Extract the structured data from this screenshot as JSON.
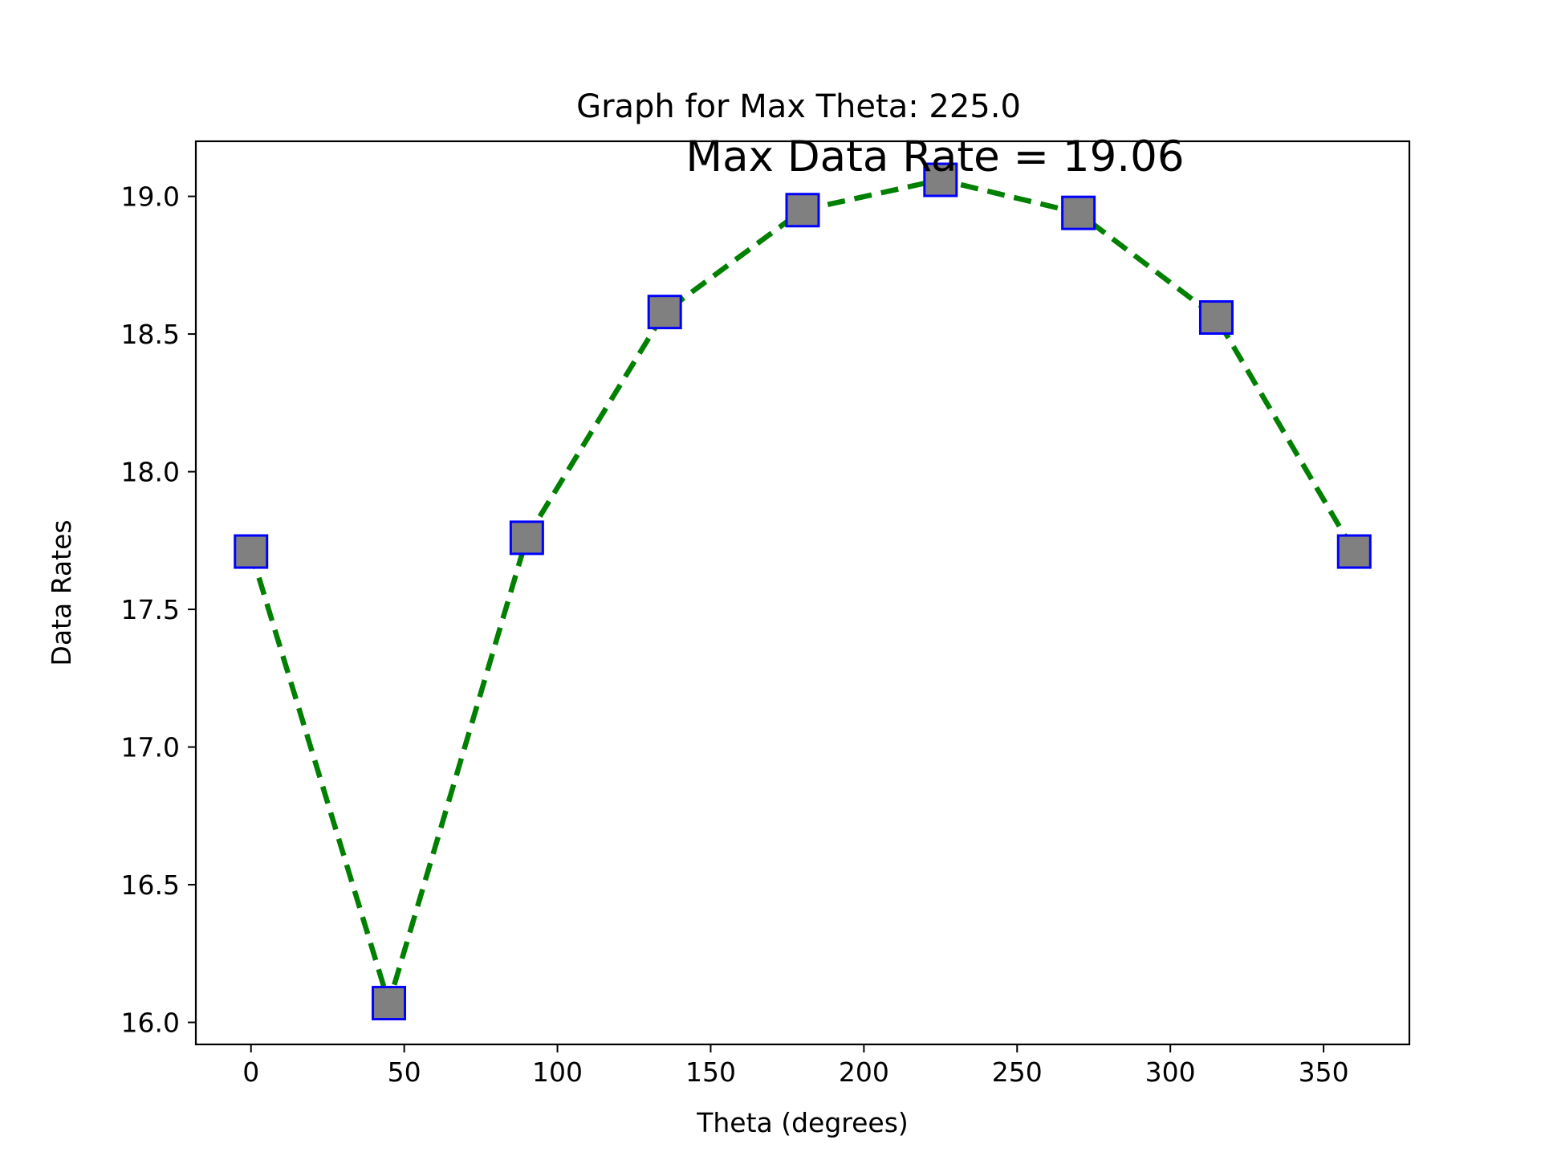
{
  "chart_data": {
    "type": "line",
    "title": "Graph for Max Theta: 225.0",
    "xlabel": "Theta (degrees)",
    "ylabel": "Data Rates",
    "annotation": "Max Data Rate = 19.06",
    "xlim": [
      -18,
      378
    ],
    "ylim": [
      15.92,
      19.2
    ],
    "xticks": [
      0,
      50,
      100,
      150,
      200,
      250,
      300,
      350
    ],
    "yticks": [
      16.0,
      16.5,
      17.0,
      17.5,
      18.0,
      18.5,
      19.0
    ],
    "series": [
      {
        "x": [
          0,
          45,
          90,
          135,
          180,
          225,
          270,
          315,
          360
        ],
        "y": [
          17.71,
          16.07,
          17.76,
          18.58,
          18.95,
          19.06,
          18.94,
          18.56,
          17.71
        ]
      }
    ],
    "style": {
      "line_color": "#008000",
      "line_style": "dashed",
      "marker": "square",
      "marker_face": "#808080",
      "marker_edge": "#0000ff"
    },
    "grid": false,
    "legend": "none"
  }
}
